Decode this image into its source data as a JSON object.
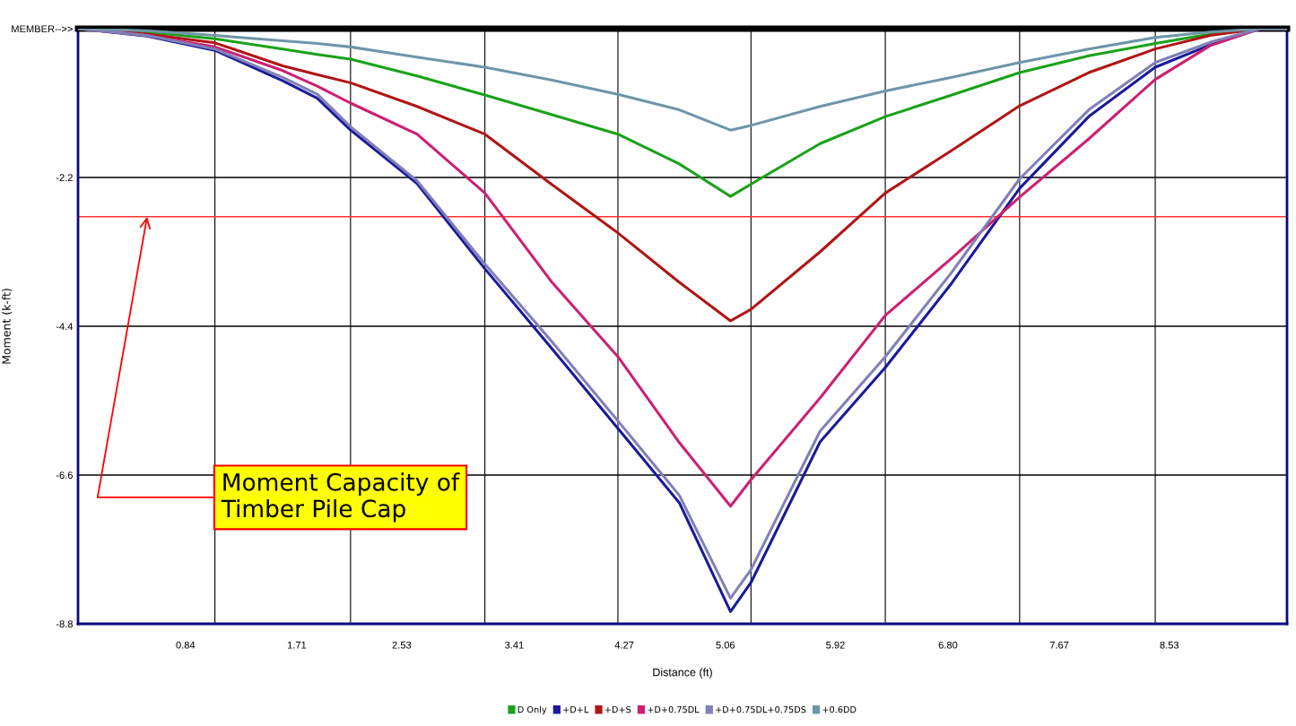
{
  "chart_data": {
    "type": "line",
    "xlabel": "Distance (ft)",
    "ylabel": "Moment (k-ft)",
    "x": [
      0,
      0.54,
      1.07,
      1.6,
      1.87,
      2.13,
      2.65,
      3.18,
      3.7,
      4.22,
      4.7,
      5.1,
      5.26,
      5.8,
      6.31,
      6.83,
      7.36,
      7.9,
      8.42,
      8.85,
      9.24,
      9.45
    ],
    "series": [
      {
        "name": "D Only",
        "color": "#1aa21a",
        "values": [
          0,
          -0.05,
          -0.15,
          -0.3,
          -0.38,
          -0.45,
          -0.7,
          -0.98,
          -1.27,
          -1.56,
          -2.0,
          -2.48,
          -2.3,
          -1.7,
          -1.3,
          -0.98,
          -0.65,
          -0.4,
          -0.22,
          -0.08,
          0,
          0
        ]
      },
      {
        "name": "+D+L",
        "color": "#1a1a9a",
        "values": [
          0,
          -0.11,
          -0.32,
          -0.77,
          -1.03,
          -1.5,
          -2.29,
          -3.55,
          -4.72,
          -5.91,
          -7.01,
          -8.62,
          -8.19,
          -6.11,
          -5.01,
          -3.76,
          -2.36,
          -1.3,
          -0.57,
          -0.24,
          0,
          0
        ]
      },
      {
        "name": "+D+S",
        "color": "#b01515",
        "values": [
          0,
          -0.08,
          -0.21,
          -0.55,
          -0.68,
          -0.8,
          -1.15,
          -1.56,
          -2.3,
          -3.02,
          -3.75,
          -4.32,
          -4.15,
          -3.3,
          -2.43,
          -1.8,
          -1.14,
          -0.65,
          -0.3,
          -0.1,
          0,
          0
        ]
      },
      {
        "name": "+D+0.75DL",
        "color": "#cc2070",
        "values": [
          0,
          -0.1,
          -0.27,
          -0.62,
          -0.85,
          -1.1,
          -1.56,
          -2.43,
          -3.74,
          -4.85,
          -6.12,
          -7.06,
          -6.67,
          -5.46,
          -4.24,
          -3.39,
          -2.49,
          -1.63,
          -0.75,
          -0.25,
          0,
          0
        ]
      },
      {
        "name": "+D+0.75DL+0.75DS",
        "color": "#8080b8",
        "values": [
          0,
          -0.1,
          -0.3,
          -0.72,
          -0.97,
          -1.45,
          -2.25,
          -3.48,
          -4.62,
          -5.8,
          -6.9,
          -8.42,
          -8.0,
          -5.95,
          -4.85,
          -3.6,
          -2.22,
          -1.2,
          -0.5,
          -0.2,
          0,
          0
        ]
      },
      {
        "name": "+0.6DD",
        "color": "#6f95a8",
        "values": [
          0,
          -0.03,
          -0.1,
          -0.18,
          -0.22,
          -0.27,
          -0.42,
          -0.57,
          -0.76,
          -0.97,
          -1.2,
          -1.5,
          -1.43,
          -1.15,
          -0.92,
          -0.72,
          -0.5,
          -0.3,
          -0.13,
          -0.05,
          0,
          0
        ]
      }
    ],
    "xlim": [
      0,
      9.45
    ],
    "ylim": [
      -8.8,
      0
    ],
    "xticks": [
      {
        "value": 0.84,
        "label": "0.84"
      },
      {
        "value": 1.71,
        "label": "1.71"
      },
      {
        "value": 2.53,
        "label": "2.53"
      },
      {
        "value": 3.41,
        "label": "3.41"
      },
      {
        "value": 4.27,
        "label": "4.27"
      },
      {
        "value": 5.06,
        "label": "5.06"
      },
      {
        "value": 5.92,
        "label": "5.92"
      },
      {
        "value": 6.8,
        "label": "6.80"
      },
      {
        "value": 7.67,
        "label": "7.67"
      },
      {
        "value": 8.53,
        "label": "8.53"
      },
      {
        "value": 1.07,
        "label": null
      },
      {
        "value": 2.13,
        "label": null
      },
      {
        "value": 3.18,
        "label": null
      },
      {
        "value": 4.22,
        "label": null
      },
      {
        "value": 5.26,
        "label": null
      },
      {
        "value": 6.31,
        "label": null
      },
      {
        "value": 7.36,
        "label": null
      },
      {
        "value": 8.42,
        "label": null
      }
    ],
    "yticks": [
      {
        "value": 0,
        "label": "MEMBER-->>"
      },
      -2.2,
      -4.4,
      -6.6,
      -8.8
    ],
    "grid": true,
    "legend": "bottom",
    "marker": "none",
    "line_style": "solid",
    "ref_lines": [
      {
        "axis": "y",
        "value": -2.78,
        "color": "#ff3030",
        "line_style": "solid"
      }
    ],
    "annotations": [
      {
        "text": "Moment Capacity of Timber Pile Cap",
        "x": 0.54,
        "y": -2.78
      }
    ]
  }
}
